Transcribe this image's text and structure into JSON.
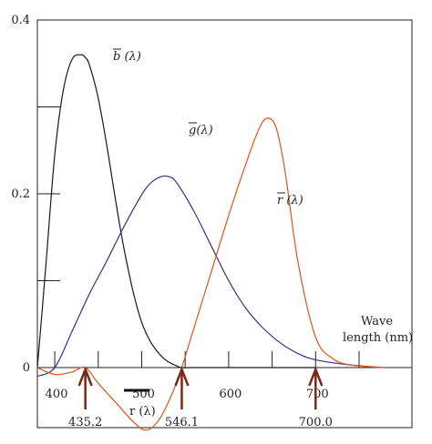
{
  "chart_data": {
    "type": "line",
    "y_axis": {
      "range": [
        0,
        0.4
      ],
      "tick_labels": [
        {
          "value": 0,
          "text": "0"
        },
        {
          "value": 0.2,
          "text": "0.2"
        },
        {
          "value": 0.4,
          "text": "0.4"
        }
      ],
      "minor_ticks": [
        0.1,
        0.3
      ]
    },
    "x_axis": {
      "range": [
        380,
        780
      ],
      "tick_labels": [
        {
          "value": 400,
          "text": "400"
        },
        {
          "value": 500,
          "text": "500"
        },
        {
          "value": 600,
          "text": "600"
        },
        {
          "value": 700,
          "text": "700"
        }
      ],
      "minor_ticks": [
        450,
        550,
        650,
        750
      ],
      "label_line1": "Wave",
      "label_line2": "length (nm)"
    },
    "series": [
      {
        "name": "b (λ)",
        "bar_letter": "b",
        "suffix": " (λ)",
        "color": "#1a1a1a",
        "x": [
          380,
          390,
          400,
          410,
          420,
          430,
          435,
          440,
          450,
          460,
          470,
          480,
          490,
          500,
          510,
          520,
          530,
          540,
          546,
          560,
          600,
          640,
          700
        ],
        "y": [
          0.0,
          0.12,
          0.245,
          0.32,
          0.355,
          0.36,
          0.357,
          0.348,
          0.31,
          0.255,
          0.192,
          0.135,
          0.088,
          0.052,
          0.03,
          0.016,
          0.007,
          0.002,
          0.0,
          0.0,
          0.0,
          0.0,
          0.0
        ]
      },
      {
        "name": "g (λ)",
        "bar_letter": "g",
        "suffix": "(λ)",
        "color": "#3a2f8f",
        "x": [
          380,
          400,
          420,
          440,
          460,
          480,
          500,
          510,
          520,
          530,
          540,
          560,
          580,
          600,
          620,
          640,
          660,
          680,
          700,
          740,
          780
        ],
        "y": [
          -0.01,
          0.0,
          0.042,
          0.085,
          0.123,
          0.163,
          0.199,
          0.212,
          0.219,
          0.22,
          0.213,
          0.18,
          0.14,
          0.1,
          0.068,
          0.045,
          0.028,
          0.016,
          0.009,
          0.003,
          0.0
        ]
      },
      {
        "name": "r (λ)",
        "bar_letter": "r",
        "suffix": " (λ)",
        "color": "#e05418",
        "x": [
          380,
          400,
          420,
          435,
          450,
          470,
          490,
          505,
          520,
          535,
          546,
          560,
          580,
          600,
          620,
          635,
          645,
          655,
          665,
          680,
          700,
          720,
          740,
          760,
          780
        ],
        "y": [
          0.0,
          -0.008,
          -0.005,
          0.0,
          -0.018,
          -0.04,
          -0.062,
          -0.072,
          -0.06,
          -0.03,
          0.0,
          0.045,
          0.11,
          0.175,
          0.235,
          0.275,
          0.287,
          0.275,
          0.225,
          0.12,
          0.035,
          0.01,
          0.003,
          0.001,
          0.0
        ]
      }
    ],
    "annotations": {
      "negative_r_label": "r (λ)",
      "markers": [
        {
          "x": 435.2,
          "text": "435.2"
        },
        {
          "x": 546.1,
          "text": "546.1"
        },
        {
          "x": 700.0,
          "text": "700.0"
        }
      ]
    },
    "grid": false,
    "legend": "none"
  }
}
